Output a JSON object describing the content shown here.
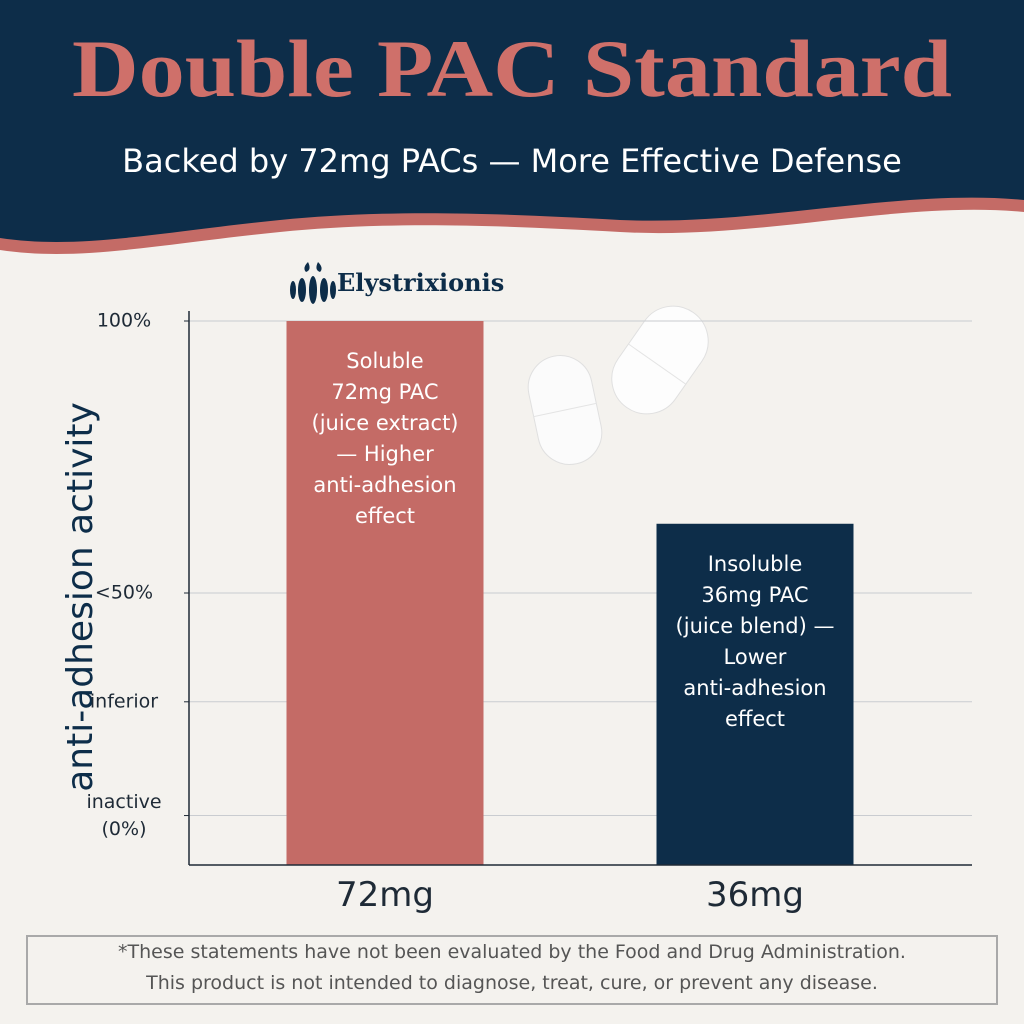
{
  "brand": "Elystrixionis",
  "disclaimer": [
    "*These statements have not been evaluated by the Food and Drug Administration.",
    "This product is not intended to diagnose, treat, cure, or prevent any disease."
  ],
  "chart_data": {
    "type": "bar",
    "title": "Double PAC Standard",
    "subtitle": "Backed by 72mg PACs — More Effective Defense",
    "y_label": "anti-adhesion activity",
    "categories": [
      "72mg",
      "36mg"
    ],
    "values": [
      100,
      59
    ],
    "colors": [
      "#c46b66",
      "#0d2d49"
    ],
    "bar_labels": [
      [
        "Soluble",
        "72mg PAC",
        "(juice extract)",
        "— Higher",
        "anti-adhesion",
        "effect"
      ],
      [
        "Insoluble",
        "36mg PAC",
        "(juice blend) —",
        "Lower",
        "anti-adhesion",
        "effect"
      ]
    ],
    "ylim": [
      -10,
      100
    ],
    "yticks": [
      {
        "value": 0,
        "label": "inactive (0%)"
      },
      {
        "value": 23,
        "label": "inferior"
      },
      {
        "value": 45,
        "label": "<50%"
      },
      {
        "value": 100,
        "label": "100%"
      }
    ],
    "grid": true
  }
}
